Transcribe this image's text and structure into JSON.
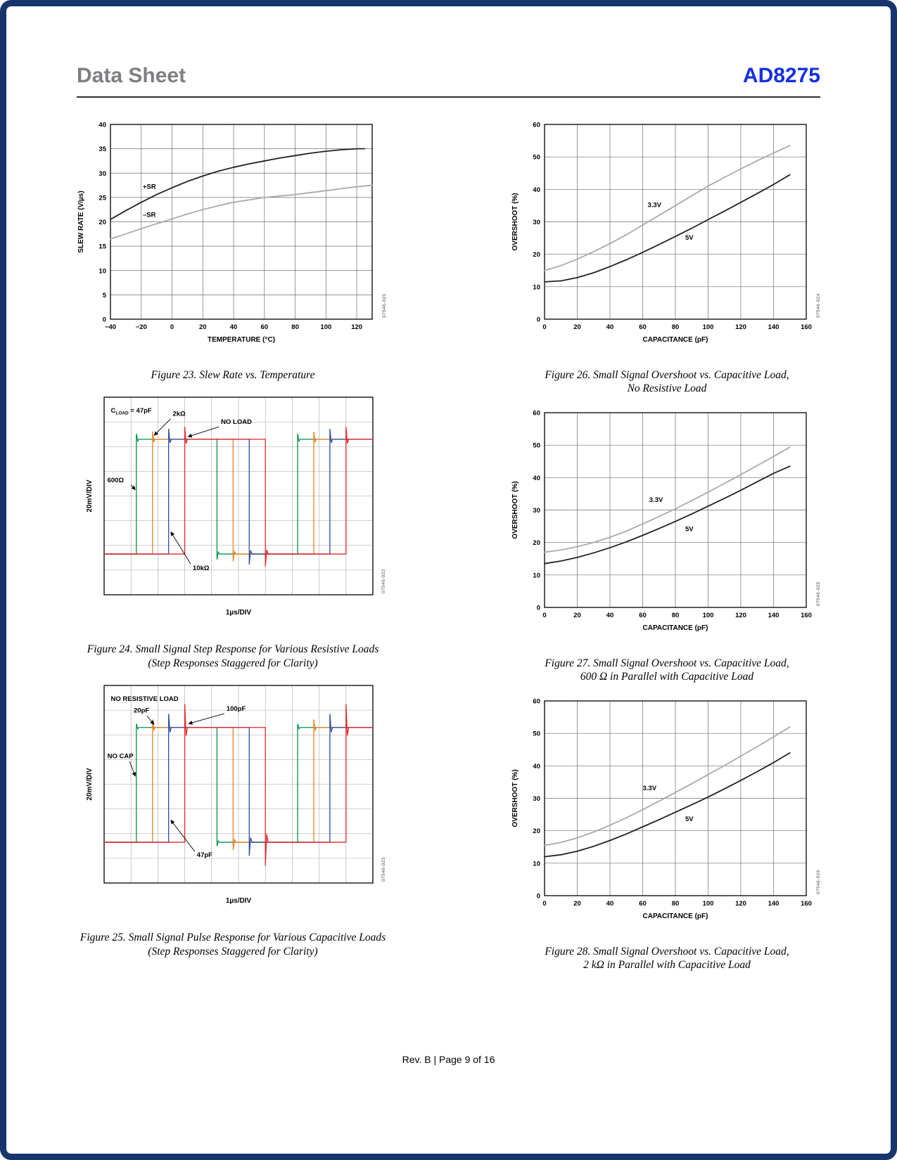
{
  "header": {
    "doc_type": "Data Sheet",
    "part_number": "AD8275"
  },
  "footer": {
    "text": "Rev. B | Page 9 of 16"
  },
  "figures": [
    {
      "caption1": "Figure 23. Slew Rate vs. Temperature",
      "caption2": ""
    },
    {
      "caption1": "Figure 24. Small Signal Step Response for Various Resistive Loads",
      "caption2": "(Step Responses Staggered for Clarity)"
    },
    {
      "caption1": "Figure 25. Small Signal Pulse Response for Various Capacitive Loads",
      "caption2": "(Step Responses Staggered for Clarity)"
    },
    {
      "caption1": "Figure 26. Small Signal Overshoot vs. Capacitive Load,",
      "caption2": "No Resistive Load"
    },
    {
      "caption1": "Figure 27. Small Signal Overshoot vs. Capacitive Load,",
      "caption2": "600 Ω in Parallel with Capacitive Load"
    },
    {
      "caption1": "Figure 28. Small Signal Overshoot vs. Capacitive Load,",
      "caption2": "2 kΩ in Parallel with Capacitive Load"
    }
  ],
  "chart_data": [
    {
      "id": "figure-23",
      "type": "line",
      "title": "Slew Rate vs. Temperature",
      "xlabel": "TEMPERATURE (°C)",
      "ylabel": "SLEW RATE (V/µs)",
      "xlim": [
        -40,
        130
      ],
      "ylim": [
        0,
        40
      ],
      "xticks": [
        -40,
        -20,
        0,
        20,
        40,
        60,
        80,
        100,
        120
      ],
      "yticks": [
        0,
        5,
        10,
        15,
        20,
        25,
        30,
        35,
        40
      ],
      "watermark": "07546-021",
      "series": [
        {
          "name": "+SR",
          "color": "#231f20",
          "x": [
            -40,
            -30,
            -20,
            -10,
            0,
            10,
            20,
            30,
            40,
            50,
            60,
            70,
            80,
            90,
            100,
            110,
            120,
            125
          ],
          "y": [
            20.5,
            22.3,
            24.0,
            25.6,
            27.0,
            28.3,
            29.4,
            30.4,
            31.2,
            31.9,
            32.5,
            33.1,
            33.6,
            34.1,
            34.5,
            34.8,
            35.0,
            35.0
          ]
        },
        {
          "name": "–SR",
          "color": "#a7a9ac",
          "x": [
            -40,
            -30,
            -20,
            -10,
            0,
            10,
            20,
            30,
            40,
            50,
            60,
            70,
            80,
            90,
            100,
            110,
            120,
            130
          ],
          "y": [
            16.5,
            17.5,
            18.6,
            19.6,
            20.6,
            21.6,
            22.5,
            23.3,
            24.0,
            24.5,
            25.0,
            25.3,
            25.6,
            26.0,
            26.4,
            26.8,
            27.2,
            27.5
          ]
        }
      ],
      "annotations": [
        {
          "text": "+SR",
          "x": -19,
          "y": 26.8
        },
        {
          "text": "–SR",
          "x": -19,
          "y": 21.0
        }
      ]
    },
    {
      "id": "figure-24",
      "type": "oscilloscope",
      "xlabel": "1µs/DIV",
      "ylabel": "20mV/DIV",
      "divs_x": 10,
      "divs_y": 8,
      "high_div": 1.7,
      "low_div": 6.35,
      "watermark": "07546-022",
      "traces": [
        {
          "name": "600Ω",
          "color": "#009247",
          "overshoot": 0.22,
          "edges": [
            [
              1.2,
              "up"
            ],
            [
              4.2,
              "down"
            ],
            [
              7.2,
              "up"
            ]
          ]
        },
        {
          "name": "2kΩ",
          "color": "#f5821f",
          "overshoot": 0.3,
          "edges": [
            [
              1.8,
              "up"
            ],
            [
              4.8,
              "down"
            ],
            [
              7.8,
              "up"
            ]
          ]
        },
        {
          "name": "10kΩ",
          "color": "#2b4ea2",
          "overshoot": 0.42,
          "edges": [
            [
              2.4,
              "up"
            ],
            [
              5.4,
              "down"
            ],
            [
              8.4,
              "up"
            ]
          ]
        },
        {
          "name": "NO LOAD",
          "color": "#e8252a",
          "overshoot": 0.5,
          "edges": [
            [
              3.0,
              "up"
            ],
            [
              6.0,
              "down"
            ],
            [
              9.0,
              "up"
            ]
          ]
        }
      ],
      "annotations": [
        {
          "text": "C_{LOAD} = 47pF",
          "x": 0.25,
          "y": 0.62
        },
        {
          "text": "2kΩ",
          "x": 2.55,
          "y": 0.75,
          "arrow": {
            "from": [
              2.47,
              0.88
            ],
            "to": [
              1.86,
              1.55
            ]
          }
        },
        {
          "text": "NO LOAD",
          "x": 4.35,
          "y": 1.08,
          "arrow": {
            "from": [
              4.27,
              1.2
            ],
            "to": [
              3.12,
              1.6
            ]
          }
        },
        {
          "text": "600Ω",
          "x": 0.12,
          "y": 3.45,
          "arrow": {
            "from": [
              1.0,
              3.55
            ],
            "to": [
              1.16,
              3.75
            ]
          }
        },
        {
          "text": "10kΩ",
          "x": 3.3,
          "y": 7.0,
          "arrow": {
            "from": [
              3.22,
              6.75
            ],
            "to": [
              2.48,
              5.45
            ]
          }
        }
      ]
    },
    {
      "id": "figure-25",
      "type": "oscilloscope",
      "xlabel": "1µs/DIV",
      "ylabel": "20mV/DIV",
      "divs_x": 10,
      "divs_y": 8,
      "high_div": 1.7,
      "low_div": 6.35,
      "watermark": "07546-023",
      "traces": [
        {
          "name": "NO CAP",
          "color": "#009247",
          "overshoot": 0.15,
          "edges": [
            [
              1.2,
              "up"
            ],
            [
              4.2,
              "down"
            ],
            [
              7.2,
              "up"
            ]
          ]
        },
        {
          "name": "20pF",
          "color": "#f5821f",
          "overshoot": 0.32,
          "edges": [
            [
              1.8,
              "up"
            ],
            [
              4.8,
              "down"
            ],
            [
              7.8,
              "up"
            ]
          ]
        },
        {
          "name": "47pF",
          "color": "#2b4ea2",
          "overshoot": 0.55,
          "edges": [
            [
              2.4,
              "up"
            ],
            [
              5.4,
              "down"
            ],
            [
              8.4,
              "up"
            ]
          ]
        },
        {
          "name": "100pF",
          "color": "#e8252a",
          "overshoot": 0.95,
          "edges": [
            [
              3.0,
              "up"
            ],
            [
              6.0,
              "down"
            ],
            [
              9.0,
              "up"
            ]
          ]
        }
      ],
      "annotations": [
        {
          "text": "NO RESISTIVE LOAD",
          "x": 0.25,
          "y": 0.62
        },
        {
          "text": "20pF",
          "x": 1.1,
          "y": 1.1,
          "arrow": {
            "from": [
              1.6,
              1.24
            ],
            "to": [
              1.86,
              1.58
            ]
          }
        },
        {
          "text": "100pF",
          "x": 4.55,
          "y": 1.02,
          "arrow": {
            "from": [
              4.47,
              1.14
            ],
            "to": [
              3.14,
              1.55
            ]
          }
        },
        {
          "text": "NO CAP",
          "x": 0.12,
          "y": 2.95,
          "arrow": {
            "from": [
              0.95,
              3.08
            ],
            "to": [
              1.16,
              3.68
            ]
          }
        },
        {
          "text": "47pF",
          "x": 3.45,
          "y": 6.95,
          "arrow": {
            "from": [
              3.37,
              6.72
            ],
            "to": [
              2.48,
              5.45
            ]
          }
        }
      ]
    },
    {
      "id": "figure-26",
      "type": "line",
      "title": "Small Signal Overshoot vs. Capacitive Load, No Resistive Load",
      "xlabel": "CAPACITANCE (pF)",
      "ylabel": "OVERSHOOT (%)",
      "xlim": [
        0,
        160
      ],
      "ylim": [
        0,
        60
      ],
      "xticks": [
        0,
        20,
        40,
        60,
        80,
        100,
        120,
        140,
        160
      ],
      "yticks": [
        0,
        10,
        20,
        30,
        40,
        50,
        60
      ],
      "watermark": "07546-024",
      "series": [
        {
          "name": "3.3V",
          "color": "#a7a9ac",
          "x": [
            0,
            10,
            20,
            30,
            40,
            50,
            60,
            70,
            80,
            90,
            100,
            110,
            120,
            130,
            140,
            150
          ],
          "y": [
            15.0,
            16.5,
            18.5,
            20.8,
            23.3,
            26.0,
            29.0,
            32.0,
            35.0,
            38.0,
            41.0,
            43.7,
            46.3,
            48.8,
            51.2,
            53.5
          ]
        },
        {
          "name": "5V",
          "color": "#231f20",
          "x": [
            0,
            10,
            20,
            30,
            40,
            50,
            60,
            70,
            80,
            90,
            100,
            110,
            120,
            130,
            140,
            150
          ],
          "y": [
            11.5,
            11.8,
            12.8,
            14.3,
            16.2,
            18.3,
            20.6,
            23.0,
            25.5,
            28.0,
            30.7,
            33.3,
            36.0,
            38.7,
            41.5,
            44.5
          ]
        }
      ],
      "annotations": [
        {
          "text": "3.3V",
          "x": 63,
          "y": 34.5
        },
        {
          "text": "5V",
          "x": 86,
          "y": 24.5
        }
      ]
    },
    {
      "id": "figure-27",
      "type": "line",
      "title": "Small Signal Overshoot vs. Capacitive Load, 600 Ω in Parallel with Capacitive Load",
      "xlabel": "CAPACITANCE (pF)",
      "ylabel": "OVERSHOOT (%)",
      "xlim": [
        0,
        160
      ],
      "ylim": [
        0,
        60
      ],
      "xticks": [
        0,
        20,
        40,
        60,
        80,
        100,
        120,
        140,
        160
      ],
      "yticks": [
        0,
        10,
        20,
        30,
        40,
        50,
        60
      ],
      "watermark": "07546-025",
      "series": [
        {
          "name": "3.3V",
          "color": "#a7a9ac",
          "x": [
            0,
            10,
            20,
            30,
            40,
            50,
            60,
            70,
            80,
            90,
            100,
            110,
            120,
            130,
            140,
            150
          ],
          "y": [
            17.0,
            17.7,
            18.7,
            20.0,
            21.6,
            23.5,
            25.7,
            28.0,
            30.4,
            32.9,
            35.5,
            38.2,
            40.9,
            43.7,
            46.5,
            49.4
          ]
        },
        {
          "name": "5V",
          "color": "#231f20",
          "x": [
            0,
            10,
            20,
            30,
            40,
            50,
            60,
            70,
            80,
            90,
            100,
            110,
            120,
            130,
            140,
            150
          ],
          "y": [
            13.5,
            14.3,
            15.4,
            16.8,
            18.4,
            20.2,
            22.2,
            24.3,
            26.5,
            28.8,
            31.2,
            33.6,
            36.1,
            38.7,
            41.3,
            43.5
          ]
        }
      ],
      "annotations": [
        {
          "text": "3.3V",
          "x": 64,
          "y": 32.5
        },
        {
          "text": "5V",
          "x": 86,
          "y": 23.5
        }
      ]
    },
    {
      "id": "figure-28",
      "type": "line",
      "title": "Small Signal Overshoot vs. Capacitive Load, 2 kΩ in Parallel with Capacitive Load",
      "xlabel": "CAPACITANCE (pF)",
      "ylabel": "OVERSHOOT (%)",
      "xlim": [
        0,
        160
      ],
      "ylim": [
        0,
        60
      ],
      "xticks": [
        0,
        20,
        40,
        60,
        80,
        100,
        120,
        140,
        160
      ],
      "yticks": [
        0,
        10,
        20,
        30,
        40,
        50,
        60
      ],
      "watermark": "07546-026",
      "series": [
        {
          "name": "3.3V",
          "color": "#a7a9ac",
          "x": [
            0,
            10,
            20,
            30,
            40,
            50,
            60,
            70,
            80,
            90,
            100,
            110,
            120,
            130,
            140,
            150
          ],
          "y": [
            15.5,
            16.4,
            17.8,
            19.6,
            21.7,
            24.0,
            26.5,
            29.1,
            31.8,
            34.5,
            37.3,
            40.1,
            43.0,
            45.9,
            48.9,
            52.0
          ]
        },
        {
          "name": "5V",
          "color": "#231f20",
          "x": [
            0,
            10,
            20,
            30,
            40,
            50,
            60,
            70,
            80,
            90,
            100,
            110,
            120,
            130,
            140,
            150
          ],
          "y": [
            12.0,
            12.6,
            13.7,
            15.2,
            17.0,
            19.0,
            21.2,
            23.4,
            25.7,
            28.0,
            30.4,
            32.9,
            35.5,
            38.2,
            41.0,
            44.0
          ]
        }
      ],
      "annotations": [
        {
          "text": "3.3V",
          "x": 60,
          "y": 32.5
        },
        {
          "text": "5V",
          "x": 86,
          "y": 23.0
        }
      ]
    }
  ]
}
